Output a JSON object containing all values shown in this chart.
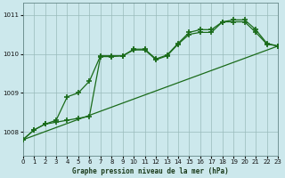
{
  "title": "Graphe pression niveau de la mer (hPa)",
  "bg_color": "#cce8ec",
  "grid_color": "#99bbbb",
  "line_color": "#1a6b1a",
  "xlim": [
    0,
    23
  ],
  "ylim": [
    1007.4,
    1011.3
  ],
  "yticks": [
    1008,
    1009,
    1010,
    1011
  ],
  "xticks": [
    0,
    1,
    2,
    3,
    4,
    5,
    6,
    7,
    8,
    9,
    10,
    11,
    12,
    13,
    14,
    15,
    16,
    17,
    18,
    19,
    20,
    21,
    22,
    23
  ],
  "trend_x": [
    0,
    23
  ],
  "trend_y": [
    1007.8,
    1010.2
  ],
  "line_a_x": [
    0,
    1,
    2,
    3,
    4,
    5,
    6,
    7,
    8,
    9,
    10,
    11,
    12,
    13,
    14,
    15,
    16,
    17,
    18,
    19,
    20,
    21,
    22,
    23
  ],
  "line_a_y": [
    1007.8,
    1008.05,
    1008.2,
    1008.25,
    1008.3,
    1008.35,
    1008.4,
    1009.93,
    1009.93,
    1009.95,
    1010.1,
    1010.1,
    1009.85,
    1009.95,
    1010.25,
    1010.5,
    1010.55,
    1010.55,
    1010.82,
    1010.82,
    1010.82,
    1010.55,
    1010.25,
    1010.2
  ],
  "line_b_x": [
    0,
    1,
    2,
    3,
    4,
    5,
    6,
    7,
    8,
    9,
    10,
    11,
    12,
    13,
    14,
    15,
    16,
    17,
    18,
    19,
    20,
    21,
    22,
    23
  ],
  "line_b_y": [
    1007.8,
    1008.05,
    1008.2,
    1008.3,
    1008.9,
    1009.0,
    1009.3,
    1009.95,
    1009.95,
    1009.95,
    1010.12,
    1010.12,
    1009.87,
    1009.97,
    1010.27,
    1010.55,
    1010.62,
    1010.62,
    1010.82,
    1010.87,
    1010.87,
    1010.62,
    1010.27,
    1010.2
  ],
  "ylabel_fontsize": 5.5,
  "tick_fontsize": 5.0
}
